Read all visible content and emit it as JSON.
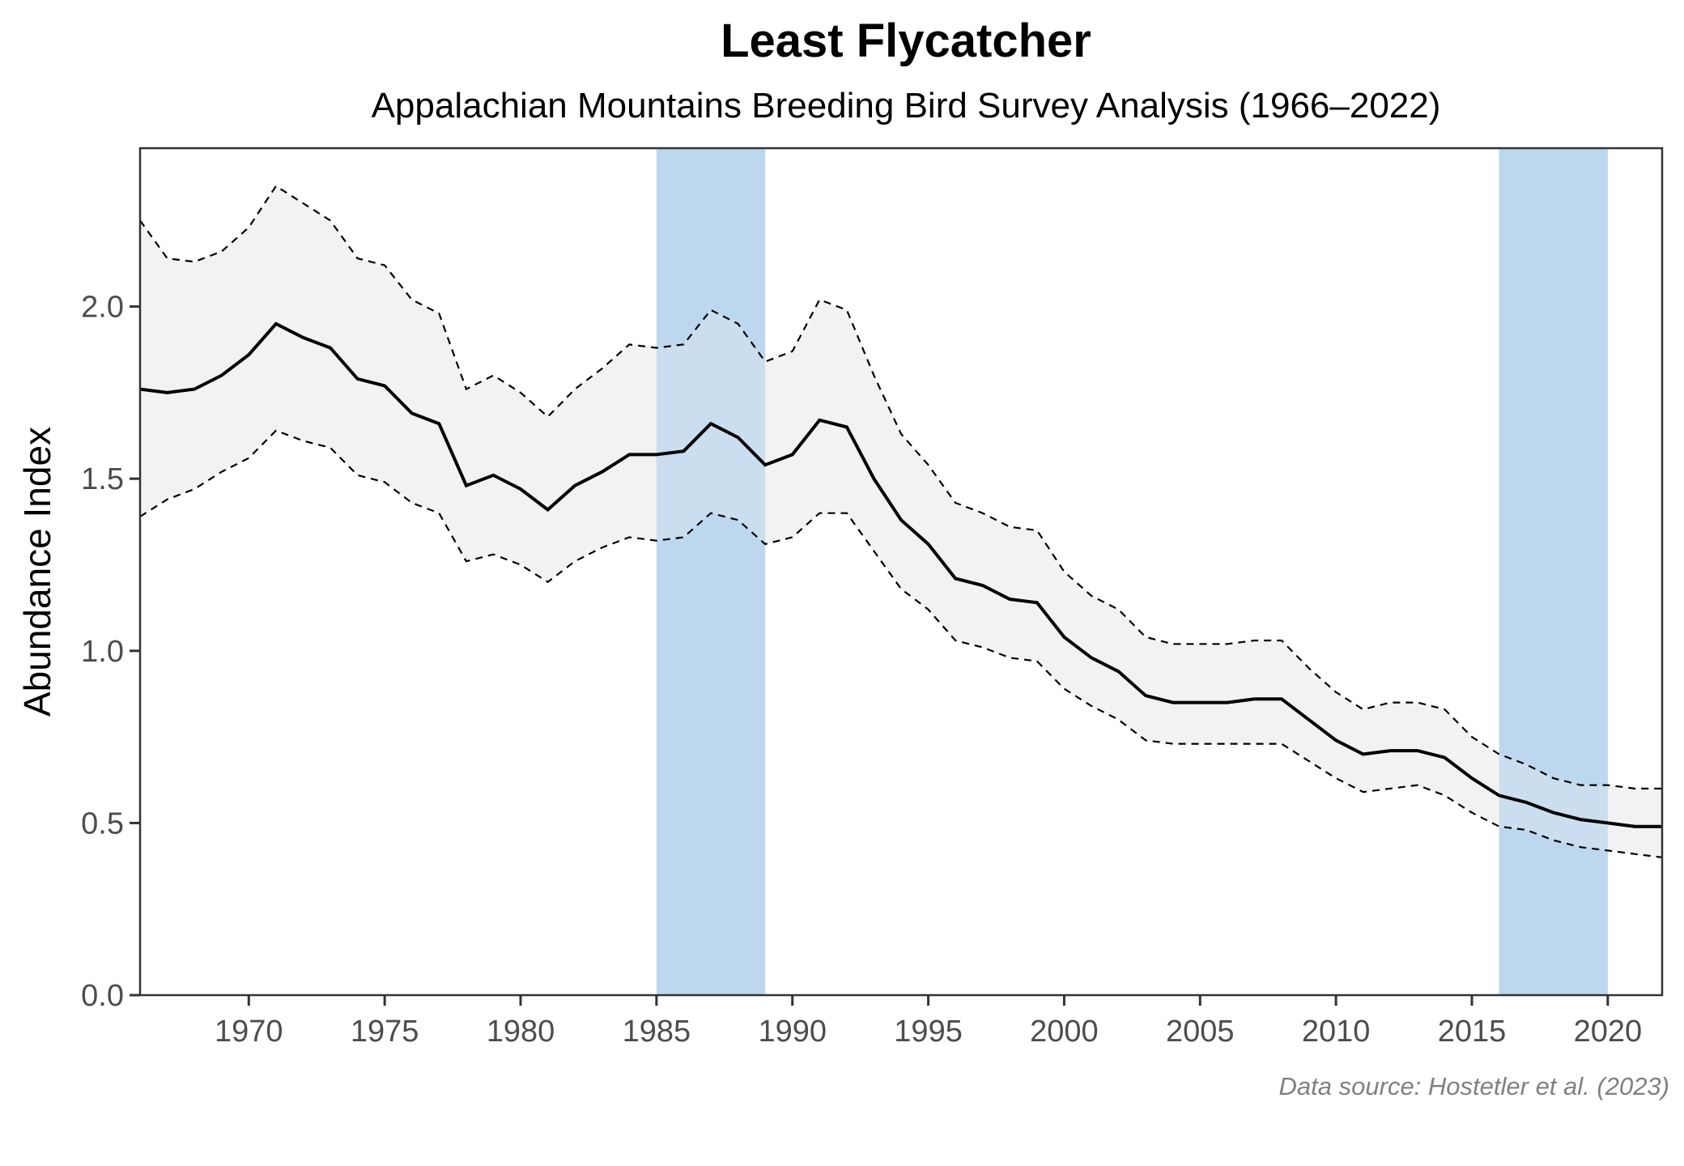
{
  "chart_data": {
    "type": "line",
    "title": "Least Flycatcher",
    "subtitle": "Appalachian Mountains Breeding Bird Survey Analysis (1966–2022)",
    "xlabel": "",
    "ylabel": "Abundance Index",
    "caption": "Data source: Hostetler et al. (2023)",
    "xlim": [
      1966,
      2022
    ],
    "ylim": [
      0,
      2.46
    ],
    "x_ticks": [
      1970,
      1975,
      1980,
      1985,
      1990,
      1995,
      2000,
      2005,
      2010,
      2015,
      2020
    ],
    "x_tick_labels": [
      "1970",
      "1975",
      "1980",
      "1985",
      "1990",
      "1995",
      "2000",
      "2005",
      "2010",
      "2015",
      "2020"
    ],
    "y_ticks": [
      0,
      0.5,
      1.0,
      1.5,
      2.0
    ],
    "y_tick_labels": [
      "0.0",
      "0.5",
      "1.0",
      "1.5",
      "2.0"
    ],
    "grid": false,
    "legend": "none",
    "highlight_periods": [
      {
        "start": 1985,
        "end": 1989,
        "color": "#bdd7ee"
      },
      {
        "start": 2016,
        "end": 2020,
        "color": "#bdd7ee"
      }
    ],
    "colors": {
      "line": "#000000",
      "ci_fill": "#f2f2f2",
      "ci_line": "#000000",
      "axis": "#333333",
      "tick_text": "#4d4d4d",
      "caption": "#808080"
    },
    "x": [
      1966,
      1967,
      1968,
      1969,
      1970,
      1971,
      1972,
      1973,
      1974,
      1975,
      1976,
      1977,
      1978,
      1979,
      1980,
      1981,
      1982,
      1983,
      1984,
      1985,
      1986,
      1987,
      1988,
      1989,
      1990,
      1991,
      1992,
      1993,
      1994,
      1995,
      1996,
      1997,
      1998,
      1999,
      2000,
      2001,
      2002,
      2003,
      2004,
      2005,
      2006,
      2007,
      2008,
      2009,
      2010,
      2011,
      2012,
      2013,
      2014,
      2015,
      2016,
      2017,
      2018,
      2019,
      2020,
      2021,
      2022
    ],
    "series": [
      {
        "name": "Abundance index",
        "style": "solid",
        "values": [
          1.76,
          1.75,
          1.76,
          1.8,
          1.86,
          1.95,
          1.91,
          1.88,
          1.79,
          1.77,
          1.69,
          1.66,
          1.48,
          1.51,
          1.47,
          1.41,
          1.48,
          1.52,
          1.57,
          1.57,
          1.58,
          1.66,
          1.62,
          1.54,
          1.57,
          1.67,
          1.65,
          1.5,
          1.38,
          1.31,
          1.21,
          1.19,
          1.15,
          1.14,
          1.04,
          0.98,
          0.94,
          0.87,
          0.85,
          0.85,
          0.85,
          0.86,
          0.86,
          0.8,
          0.74,
          0.7,
          0.71,
          0.71,
          0.69,
          0.63,
          0.58,
          0.56,
          0.53,
          0.51,
          0.5,
          0.49,
          0.49
        ]
      },
      {
        "name": "Upper 95% CI",
        "style": "dashed",
        "values": [
          2.25,
          2.14,
          2.13,
          2.16,
          2.23,
          2.35,
          2.3,
          2.25,
          2.14,
          2.12,
          2.02,
          1.98,
          1.76,
          1.8,
          1.75,
          1.68,
          1.76,
          1.82,
          1.89,
          1.88,
          1.89,
          1.99,
          1.95,
          1.84,
          1.87,
          2.02,
          1.99,
          1.8,
          1.63,
          1.54,
          1.43,
          1.4,
          1.36,
          1.35,
          1.23,
          1.16,
          1.12,
          1.04,
          1.02,
          1.02,
          1.02,
          1.03,
          1.03,
          0.95,
          0.88,
          0.83,
          0.85,
          0.85,
          0.83,
          0.75,
          0.7,
          0.67,
          0.63,
          0.61,
          0.61,
          0.6,
          0.6
        ]
      },
      {
        "name": "Lower 95% CI",
        "style": "dashed",
        "values": [
          1.39,
          1.44,
          1.47,
          1.52,
          1.56,
          1.64,
          1.61,
          1.59,
          1.51,
          1.49,
          1.43,
          1.4,
          1.26,
          1.28,
          1.25,
          1.2,
          1.26,
          1.3,
          1.33,
          1.32,
          1.33,
          1.4,
          1.38,
          1.31,
          1.33,
          1.4,
          1.4,
          1.29,
          1.18,
          1.12,
          1.03,
          1.01,
          0.98,
          0.97,
          0.89,
          0.84,
          0.8,
          0.74,
          0.73,
          0.73,
          0.73,
          0.73,
          0.73,
          0.68,
          0.63,
          0.59,
          0.6,
          0.61,
          0.58,
          0.53,
          0.49,
          0.48,
          0.45,
          0.43,
          0.42,
          0.41,
          0.4
        ]
      }
    ]
  }
}
